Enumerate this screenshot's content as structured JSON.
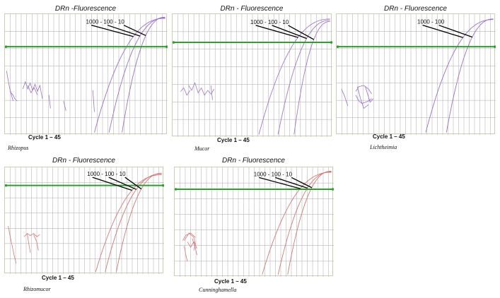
{
  "colors": {
    "threshold": "#2e9e2e",
    "grid": "#b9b9b9",
    "border": "#c9cfb6",
    "pointer": "#000000"
  },
  "chart_data": [
    {
      "type": "line",
      "title": "DRn -Fluorescence",
      "xlabel": "Cycle 1 – 45",
      "organism": "Rhizopus",
      "dilution_label": "1000 - 100 - 10",
      "curve_color": "#9a72c8",
      "x_ticks": 30,
      "y_ticks": 7,
      "threshold_level": 0.73,
      "curves": [
        {
          "dilution": "1000",
          "start_cycle": 0.55,
          "end_level": 0.965
        },
        {
          "dilution": "100",
          "start_cycle": 0.64,
          "end_level": 0.97
        },
        {
          "dilution": "10",
          "start_cycle": 0.72,
          "end_level": 0.975
        }
      ],
      "noise": [
        [
          [
            0.01,
            0.53
          ],
          [
            0.02,
            0.45
          ],
          [
            0.03,
            0.38
          ],
          [
            0.05,
            0.28
          ]
        ],
        [
          [
            0.03,
            0.36
          ],
          [
            0.05,
            0.33
          ],
          [
            0.06,
            0.3
          ],
          [
            0.075,
            0.28
          ]
        ],
        [
          [
            0.11,
            0.38
          ],
          [
            0.125,
            0.44
          ],
          [
            0.14,
            0.38
          ],
          [
            0.155,
            0.43
          ],
          [
            0.17,
            0.37
          ],
          [
            0.185,
            0.42
          ],
          [
            0.2,
            0.36
          ],
          [
            0.215,
            0.41
          ],
          [
            0.23,
            0.3
          ]
        ],
        [
          [
            0.14,
            0.41
          ],
          [
            0.16,
            0.35
          ],
          [
            0.18,
            0.39
          ],
          [
            0.2,
            0.33
          ]
        ],
        [
          [
            0.27,
            0.33
          ],
          [
            0.28,
            0.22
          ]
        ],
        [
          [
            0.36,
            0.28
          ],
          [
            0.375,
            0.2
          ]
        ],
        [
          [
            0.54,
            0.37
          ],
          [
            0.55,
            0.19
          ]
        ]
      ]
    },
    {
      "type": "line",
      "title": "DRn - Fluorescence",
      "xlabel": "Cycle 1 – 45",
      "organism": "Mucor",
      "dilution_label": "1000 - 100 - 10",
      "curve_color": "#a07ac8",
      "x_ticks": 30,
      "y_ticks": 7,
      "threshold_level": 0.77,
      "curves": [
        {
          "dilution": "1000",
          "start_cycle": 0.54,
          "end_level": 0.96
        },
        {
          "dilution": "100",
          "start_cycle": 0.66,
          "end_level": 0.95
        },
        {
          "dilution": "10",
          "start_cycle": 0.76,
          "end_level": 0.94
        }
      ],
      "noise": [
        [
          [
            0.05,
            0.37
          ],
          [
            0.07,
            0.4
          ],
          [
            0.09,
            0.34
          ],
          [
            0.11,
            0.38
          ]
        ],
        [
          [
            0.1,
            0.42
          ],
          [
            0.12,
            0.38
          ],
          [
            0.14,
            0.44
          ],
          [
            0.16,
            0.36
          ],
          [
            0.18,
            0.4
          ]
        ],
        [
          [
            0.18,
            0.4
          ],
          [
            0.2,
            0.34
          ],
          [
            0.22,
            0.38
          ],
          [
            0.24,
            0.35
          ],
          [
            0.26,
            0.39
          ]
        ],
        [
          [
            0.24,
            0.42
          ],
          [
            0.25,
            0.3
          ]
        ]
      ]
    },
    {
      "type": "line",
      "title": "DRn - Fluorescence",
      "xlabel": "Cycle 1 – 45",
      "organism": "Lichtheimia",
      "dilution_label": "1000 - 100",
      "curve_color": "#9a72c8",
      "x_ticks": 30,
      "y_ticks": 7,
      "threshold_level": 0.73,
      "curves": [
        {
          "dilution": "1000",
          "start_cycle": 0.56,
          "end_level": 0.955
        },
        {
          "dilution": "100",
          "start_cycle": 0.69,
          "end_level": 0.96
        }
      ],
      "noise": [
        [
          [
            0.03,
            0.38
          ],
          [
            0.05,
            0.32
          ],
          [
            0.07,
            0.24
          ]
        ],
        [
          [
            0.12,
            0.36
          ],
          [
            0.14,
            0.4
          ],
          [
            0.17,
            0.41
          ],
          [
            0.2,
            0.38
          ],
          [
            0.22,
            0.34
          ]
        ],
        [
          [
            0.12,
            0.33
          ],
          [
            0.14,
            0.28
          ],
          [
            0.16,
            0.26
          ],
          [
            0.2,
            0.28
          ],
          [
            0.22,
            0.3
          ]
        ],
        [
          [
            0.13,
            0.4
          ],
          [
            0.15,
            0.3
          ],
          [
            0.17,
            0.22
          ],
          [
            0.2,
            0.25
          ]
        ],
        [
          [
            0.18,
            0.4
          ],
          [
            0.21,
            0.27
          ],
          [
            0.23,
            0.3
          ]
        ]
      ]
    },
    {
      "type": "line",
      "title": "DRn - Fluorescence",
      "xlabel": "Cycle 1 – 45",
      "organism": "Rhizomucor",
      "dilution_label": "1000 - 100 - 10",
      "curve_color": "#d07a7a",
      "x_ticks": 30,
      "y_ticks": 7,
      "threshold_level": 0.83,
      "curves": [
        {
          "dilution": "1000",
          "start_cycle": 0.57,
          "end_level": 0.93
        },
        {
          "dilution": "100",
          "start_cycle": 0.63,
          "end_level": 0.94
        },
        {
          "dilution": "10",
          "start_cycle": 0.7,
          "end_level": 0.945
        }
      ],
      "noise": [
        [
          [
            0.02,
            0.45
          ],
          [
            0.04,
            0.3
          ],
          [
            0.06,
            0.16
          ],
          [
            0.07,
            0.1
          ]
        ],
        [
          [
            0.12,
            0.35
          ],
          [
            0.14,
            0.38
          ],
          [
            0.16,
            0.36
          ],
          [
            0.18,
            0.38
          ],
          [
            0.2,
            0.35
          ],
          [
            0.22,
            0.37
          ]
        ],
        [
          [
            0.14,
            0.38
          ],
          [
            0.15,
            0.28
          ],
          [
            0.16,
            0.2
          ]
        ],
        [
          [
            0.18,
            0.37
          ],
          [
            0.2,
            0.3
          ],
          [
            0.21,
            0.22
          ]
        ]
      ]
    },
    {
      "type": "line",
      "title": "DRn - Fluorescence",
      "xlabel": "Cycle 1 – 45",
      "organism": "Cunninghamella",
      "dilution_label": "1000 - 100 - 10",
      "curve_color": "#d07a7a",
      "x_ticks": 30,
      "y_ticks": 7,
      "threshold_level": 0.8,
      "curves": [
        {
          "dilution": "1000",
          "start_cycle": 0.55,
          "end_level": 0.955
        },
        {
          "dilution": "100",
          "start_cycle": 0.65,
          "end_level": 0.96
        },
        {
          "dilution": "10",
          "start_cycle": 0.71,
          "end_level": 0.965
        }
      ],
      "noise": [
        [
          [
            0.06,
            0.33
          ],
          [
            0.09,
            0.4
          ],
          [
            0.12,
            0.36
          ],
          [
            0.13,
            0.3
          ],
          [
            0.12,
            0.24
          ]
        ],
        [
          [
            0.08,
            0.32
          ],
          [
            0.1,
            0.27
          ],
          [
            0.12,
            0.32
          ],
          [
            0.14,
            0.26
          ]
        ],
        [
          [
            0.06,
            0.28
          ],
          [
            0.07,
            0.2
          ],
          [
            0.08,
            0.14
          ]
        ],
        [
          [
            0.11,
            0.35
          ],
          [
            0.13,
            0.26
          ],
          [
            0.14,
            0.2
          ]
        ],
        [
          [
            0.05,
            0.33
          ],
          [
            0.07,
            0.38
          ],
          [
            0.1,
            0.4
          ],
          [
            0.13,
            0.36
          ]
        ]
      ]
    }
  ]
}
